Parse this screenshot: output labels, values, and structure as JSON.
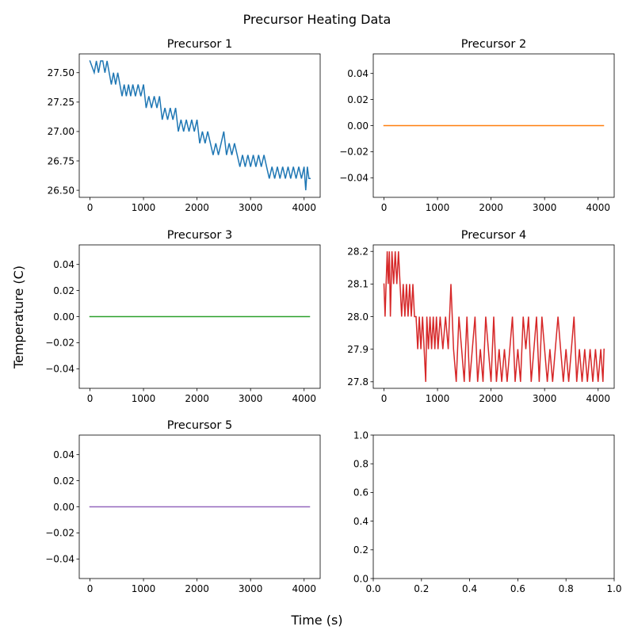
{
  "figure": {
    "title": "Precursor Heating Data",
    "xlabel": "Time (s)",
    "ylabel": "Temperature (C)"
  },
  "chart_data": [
    {
      "type": "line",
      "title": "Precursor 1",
      "color": "#1f77b4",
      "xlim": [
        -200,
        4300
      ],
      "ylim": [
        26.44,
        27.66
      ],
      "xticks": [
        0,
        1000,
        2000,
        3000,
        4000
      ],
      "yticks": [
        26.5,
        26.75,
        27.0,
        27.25,
        27.5
      ],
      "ytick_decimals": 2,
      "series": [
        {
          "x": [
            0,
            80,
            120,
            160,
            200,
            240,
            280,
            320,
            360,
            400,
            440,
            480,
            520,
            560,
            600,
            640,
            680,
            720,
            760,
            800,
            850,
            900,
            950,
            1000,
            1050,
            1100,
            1150,
            1200,
            1250,
            1300,
            1350,
            1400,
            1450,
            1500,
            1550,
            1600,
            1650,
            1700,
            1750,
            1800,
            1850,
            1900,
            1950,
            2000,
            2050,
            2100,
            2150,
            2200,
            2250,
            2300,
            2350,
            2400,
            2450,
            2500,
            2550,
            2600,
            2650,
            2700,
            2750,
            2800,
            2850,
            2900,
            2950,
            3000,
            3050,
            3100,
            3150,
            3200,
            3250,
            3300,
            3350,
            3400,
            3450,
            3500,
            3550,
            3600,
            3650,
            3700,
            3750,
            3800,
            3850,
            3900,
            3950,
            4000,
            4030,
            4060,
            4090,
            4110
          ],
          "y": [
            27.6,
            27.5,
            27.6,
            27.5,
            27.6,
            27.6,
            27.5,
            27.6,
            27.5,
            27.4,
            27.5,
            27.4,
            27.5,
            27.4,
            27.3,
            27.4,
            27.3,
            27.4,
            27.3,
            27.4,
            27.3,
            27.4,
            27.3,
            27.4,
            27.2,
            27.3,
            27.2,
            27.3,
            27.2,
            27.3,
            27.1,
            27.2,
            27.1,
            27.2,
            27.1,
            27.2,
            27.0,
            27.1,
            27.0,
            27.1,
            27.0,
            27.1,
            27.0,
            27.1,
            26.9,
            27.0,
            26.9,
            27.0,
            26.9,
            26.8,
            26.9,
            26.8,
            26.9,
            27.0,
            26.8,
            26.9,
            26.8,
            26.9,
            26.8,
            26.7,
            26.8,
            26.7,
            26.8,
            26.7,
            26.8,
            26.7,
            26.8,
            26.7,
            26.8,
            26.7,
            26.6,
            26.7,
            26.6,
            26.7,
            26.6,
            26.7,
            26.6,
            26.7,
            26.6,
            26.7,
            26.6,
            26.7,
            26.6,
            26.7,
            26.5,
            26.7,
            26.6,
            26.6
          ]
        }
      ]
    },
    {
      "type": "line",
      "title": "Precursor 2",
      "color": "#ff7f0e",
      "xlim": [
        -200,
        4300
      ],
      "ylim": [
        -0.055,
        0.055
      ],
      "xticks": [
        0,
        1000,
        2000,
        3000,
        4000
      ],
      "yticks": [
        -0.04,
        -0.02,
        0.0,
        0.02,
        0.04
      ],
      "ytick_decimals": 2,
      "series": [
        {
          "x": [
            0,
            4100
          ],
          "y": [
            0,
            0
          ]
        }
      ]
    },
    {
      "type": "line",
      "title": "Precursor 3",
      "color": "#2ca02c",
      "xlim": [
        -200,
        4300
      ],
      "ylim": [
        -0.055,
        0.055
      ],
      "xticks": [
        0,
        1000,
        2000,
        3000,
        4000
      ],
      "yticks": [
        -0.04,
        -0.02,
        0.0,
        0.02,
        0.04
      ],
      "ytick_decimals": 2,
      "series": [
        {
          "x": [
            0,
            4100
          ],
          "y": [
            0,
            0
          ]
        }
      ]
    },
    {
      "type": "line",
      "title": "Precursor 4",
      "color": "#d62728",
      "xlim": [
        -200,
        4300
      ],
      "ylim": [
        27.78,
        28.22
      ],
      "xticks": [
        0,
        1000,
        2000,
        3000,
        4000
      ],
      "yticks": [
        27.8,
        27.9,
        28.0,
        28.1,
        28.2
      ],
      "ytick_decimals": 1,
      "series": [
        {
          "x": [
            0,
            20,
            40,
            60,
            80,
            100,
            120,
            150,
            180,
            210,
            240,
            270,
            300,
            330,
            360,
            390,
            420,
            450,
            480,
            510,
            540,
            570,
            600,
            630,
            660,
            690,
            720,
            750,
            780,
            800,
            830,
            860,
            890,
            920,
            950,
            980,
            1010,
            1050,
            1100,
            1150,
            1200,
            1250,
            1300,
            1350,
            1400,
            1450,
            1500,
            1550,
            1600,
            1650,
            1700,
            1750,
            1800,
            1850,
            1900,
            1950,
            2000,
            2050,
            2100,
            2150,
            2200,
            2250,
            2300,
            2350,
            2400,
            2450,
            2500,
            2550,
            2600,
            2650,
            2700,
            2750,
            2800,
            2850,
            2900,
            2950,
            3000,
            3050,
            3100,
            3150,
            3200,
            3250,
            3300,
            3350,
            3400,
            3450,
            3500,
            3550,
            3600,
            3650,
            3700,
            3750,
            3800,
            3850,
            3900,
            3950,
            4000,
            4050,
            4090,
            4110
          ],
          "y": [
            28.1,
            28.0,
            28.1,
            28.2,
            28.1,
            28.2,
            28.0,
            28.2,
            28.1,
            28.2,
            28.1,
            28.2,
            28.1,
            28.0,
            28.1,
            28.0,
            28.1,
            28.0,
            28.1,
            28.0,
            28.1,
            28.0,
            28.0,
            27.9,
            28.0,
            27.9,
            28.0,
            27.9,
            27.8,
            28.0,
            27.9,
            28.0,
            27.9,
            28.0,
            27.9,
            28.0,
            27.9,
            28.0,
            27.9,
            28.0,
            27.9,
            28.1,
            27.9,
            27.8,
            28.0,
            27.9,
            27.8,
            28.0,
            27.8,
            27.9,
            28.0,
            27.8,
            27.9,
            27.8,
            28.0,
            27.9,
            27.8,
            28.0,
            27.8,
            27.9,
            27.8,
            27.9,
            27.8,
            27.9,
            28.0,
            27.8,
            27.9,
            27.8,
            28.0,
            27.9,
            28.0,
            27.8,
            27.9,
            28.0,
            27.8,
            28.0,
            27.9,
            27.8,
            27.9,
            27.8,
            27.9,
            28.0,
            27.9,
            27.8,
            27.9,
            27.8,
            27.9,
            28.0,
            27.8,
            27.9,
            27.8,
            27.9,
            27.8,
            27.9,
            27.8,
            27.9,
            27.8,
            27.9,
            27.8,
            27.9
          ]
        }
      ]
    },
    {
      "type": "line",
      "title": "Precursor 5",
      "color": "#9467bd",
      "xlim": [
        -200,
        4300
      ],
      "ylim": [
        -0.055,
        0.055
      ],
      "xticks": [
        0,
        1000,
        2000,
        3000,
        4000
      ],
      "yticks": [
        -0.04,
        -0.02,
        0.0,
        0.02,
        0.04
      ],
      "ytick_decimals": 2,
      "series": [
        {
          "x": [
            0,
            4100
          ],
          "y": [
            0,
            0
          ]
        }
      ]
    },
    {
      "type": "line",
      "title": "",
      "color": "#000000",
      "xlim": [
        0,
        1
      ],
      "ylim": [
        0,
        1
      ],
      "xticks": [
        0.0,
        0.2,
        0.4,
        0.6,
        0.8,
        1.0
      ],
      "yticks": [
        0.0,
        0.2,
        0.4,
        0.6,
        0.8,
        1.0
      ],
      "xtick_decimals": 1,
      "ytick_decimals": 1,
      "series": []
    }
  ]
}
